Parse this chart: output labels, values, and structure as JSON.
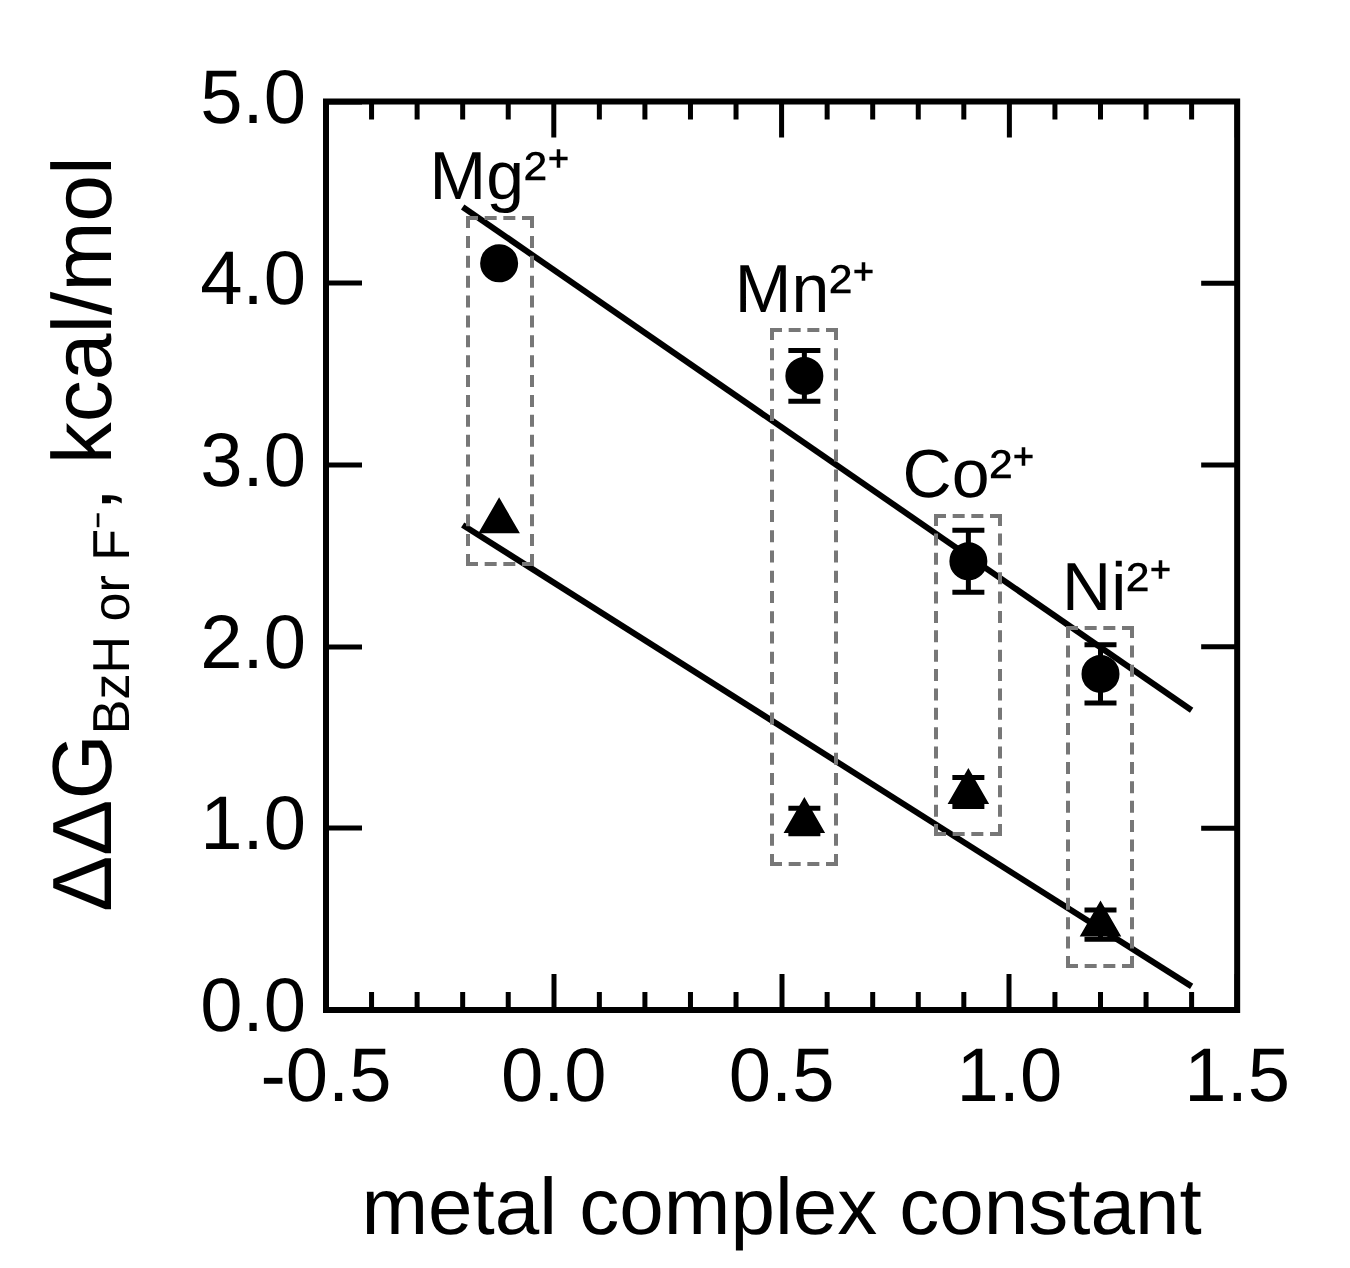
{
  "chart_data": {
    "type": "scatter",
    "xlabel": "metal complex constant",
    "ylabel": "ΔΔG$_{BzH or F⁻}$, kcal/mol",
    "xlim": [
      -0.5,
      1.5
    ],
    "ylim": [
      0,
      5
    ],
    "xticks": [
      -0.5,
      {
        "value": -0.4,
        "label": null
      },
      {
        "value": -0.3,
        "label": null
      },
      {
        "value": -0.2,
        "label": null
      },
      {
        "value": -0.1,
        "label": null
      },
      {
        "value": 0,
        "label": "0.0"
      },
      {
        "value": 0.1,
        "label": null
      },
      {
        "value": 0.2,
        "label": null
      },
      {
        "value": 0.3,
        "label": null
      },
      {
        "value": 0.4,
        "label": null
      },
      0.5,
      {
        "value": 0.6,
        "label": null
      },
      {
        "value": 0.7,
        "label": null
      },
      {
        "value": 0.8,
        "label": null
      },
      {
        "value": 0.9,
        "label": null
      },
      {
        "value": 1,
        "label": "1.0"
      },
      {
        "value": 1.1,
        "label": null
      },
      {
        "value": 1.2,
        "label": null
      },
      {
        "value": 1.3,
        "label": null
      },
      {
        "value": 1.4,
        "label": null
      },
      1.5
    ],
    "yticks": [
      {
        "value": 0,
        "label": "0.0"
      },
      {
        "value": 1,
        "label": "1.0"
      },
      {
        "value": 2,
        "label": "2.0"
      },
      {
        "value": 3,
        "label": "3.0"
      },
      {
        "value": 4,
        "label": "4.0"
      },
      {
        "value": 5,
        "label": "5.0"
      }
    ],
    "grid": false,
    "legend": false,
    "series": [
      {
        "color": "#000000",
        "marker": "circle",
        "x": [
          -0.12,
          0.55,
          0.91,
          1.2
        ],
        "values": [
          4.11,
          3.49,
          2.47,
          1.85
        ],
        "errors": [
          null,
          0.14,
          0.17,
          0.16
        ]
      },
      {
        "color": "#000000",
        "marker": "triangle",
        "x": [
          -0.12,
          0.55,
          0.91,
          1.2
        ],
        "values": [
          2.69,
          1.04,
          1.2,
          0.47
        ],
        "errors": [
          null,
          0.07,
          0.08,
          0.08
        ]
      },
      {
        "type": "line",
        "color": "#000000",
        "marker": "none",
        "x": [
          -0.2,
          1.4
        ],
        "values": [
          4.42,
          1.65
        ]
      },
      {
        "type": "line",
        "color": "#000000",
        "marker": "none",
        "x": [
          -0.2,
          1.4
        ],
        "values": [
          2.67,
          0.13
        ]
      }
    ],
    "annotations": [
      "Mg²⁺",
      "Mn²⁺",
      "Co²⁺",
      "Ni²⁺"
    ]
  }
}
